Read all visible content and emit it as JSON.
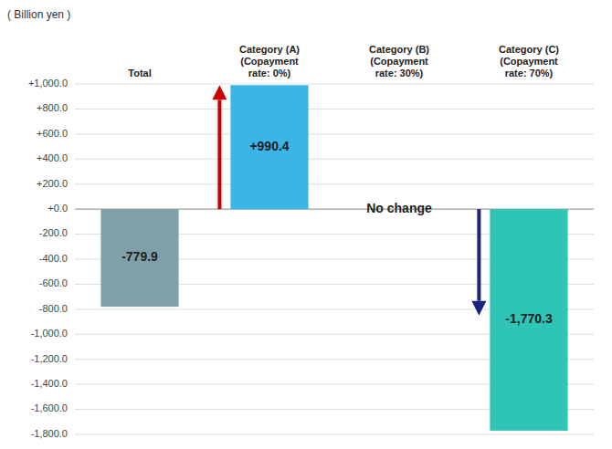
{
  "chart_data": {
    "type": "bar",
    "ylabel": "( Billion yen )",
    "categories": [
      "Total",
      "Category (A)\n(Copayment\nrate: 0%)",
      "Category (B)\n(Copayment\nrate: 30%)",
      "Category (C)\n(Copayment\nrate: 70%)"
    ],
    "values": [
      -779.9,
      990.4,
      0,
      -1770.3
    ],
    "value_labels": [
      "-779.9",
      "+990.4",
      "No change",
      "-1,770.3"
    ],
    "data_labels": true,
    "colors": [
      "#7fa0a8",
      "#3bb5e8",
      null,
      "#2ec4b6"
    ],
    "arrows": [
      null,
      {
        "from": 0,
        "to": 990.4,
        "color": "#cc0000"
      },
      null,
      {
        "from": 0,
        "to": -850,
        "color": "#1a237e"
      }
    ],
    "ylim": [
      -1800,
      1000
    ],
    "yticks": [
      {
        "value": -1800,
        "label": "-1,800.0"
      },
      {
        "value": -1600,
        "label": "-1,600.0"
      },
      {
        "value": -1400,
        "label": "-1,400.0"
      },
      {
        "value": -1200,
        "label": "-1,200.0"
      },
      {
        "value": -1000,
        "label": "-1,000.0"
      },
      {
        "value": -800,
        "label": "-800.0"
      },
      {
        "value": -600,
        "label": "-600.0"
      },
      {
        "value": -400,
        "label": "-400.0"
      },
      {
        "value": -200,
        "label": "-200.0"
      },
      {
        "value": 0,
        "label": "+0.0"
      },
      {
        "value": 200,
        "label": "+200.0"
      },
      {
        "value": 400,
        "label": "+400.0"
      },
      {
        "value": 600,
        "label": "+600.0"
      },
      {
        "value": 800,
        "label": "+800.0"
      },
      {
        "value": 1000,
        "label": "+1,000.0"
      }
    ],
    "grid": true
  }
}
